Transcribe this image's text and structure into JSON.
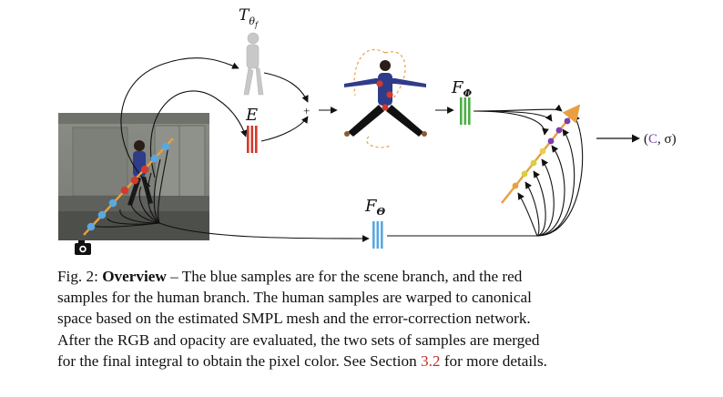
{
  "figure": {
    "labels": {
      "t_theta": "T",
      "t_theta_sub": "θ",
      "t_theta_subsub": "f",
      "error_net": "E",
      "f_phi": "F",
      "f_phi_sub": "Φ",
      "f_theta": "F",
      "f_theta_sub": "Θ",
      "plus": "+",
      "output_open": "(",
      "output_c": "C",
      "output_rest": ", σ)"
    },
    "colors": {
      "human_branch": "#d23a2c",
      "scene_branch": "#5aa8e0",
      "nerf_branch": "#4cae46",
      "output_c": "#7a3fb0",
      "ray": "#e8a040"
    },
    "icons": {
      "camera": "camera-icon"
    }
  },
  "caption": {
    "lines": [
      {
        "prefix": "Fig. 2: ",
        "bold": "Overview",
        "text": " – The blue samples are for the scene branch, and the red"
      },
      {
        "text": "samples for the human branch. The human samples are warped to canonical"
      },
      {
        "text": "space based on the estimated SMPL mesh and the error-correction network."
      },
      {
        "text": "After the RGB and opacity are evaluated, the two sets of samples are merged"
      },
      {
        "text": "for the final integral to obtain the pixel color. See Section ",
        "ref": "3.2",
        "suffix": " for more details."
      }
    ]
  }
}
